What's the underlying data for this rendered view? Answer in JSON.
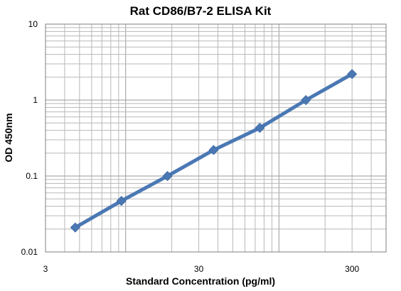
{
  "chart_data": {
    "type": "line",
    "title": "Rat CD86/B7-2 ELISA Kit",
    "xlabel": "Standard Concentration (pg/ml)",
    "ylabel": "OD 450nm",
    "x_scale": "log",
    "y_scale": "log",
    "xlim": [
      3,
      500
    ],
    "ylim": [
      0.01,
      10
    ],
    "x_ticks": [
      3,
      30,
      300
    ],
    "x_tick_labels": [
      "3",
      "30",
      "300"
    ],
    "y_ticks": [
      0.01,
      0.1,
      1,
      10
    ],
    "y_tick_labels": [
      "0.01",
      "0.1",
      "1",
      "10"
    ],
    "grid": true,
    "legend": "none",
    "series": [
      {
        "color": "#4a78b4",
        "marker": "diamond",
        "x": [
          4.69,
          9.38,
          18.75,
          37.5,
          75,
          150,
          300
        ],
        "y": [
          0.021,
          0.047,
          0.1,
          0.22,
          0.43,
          1.0,
          2.2
        ]
      }
    ]
  }
}
